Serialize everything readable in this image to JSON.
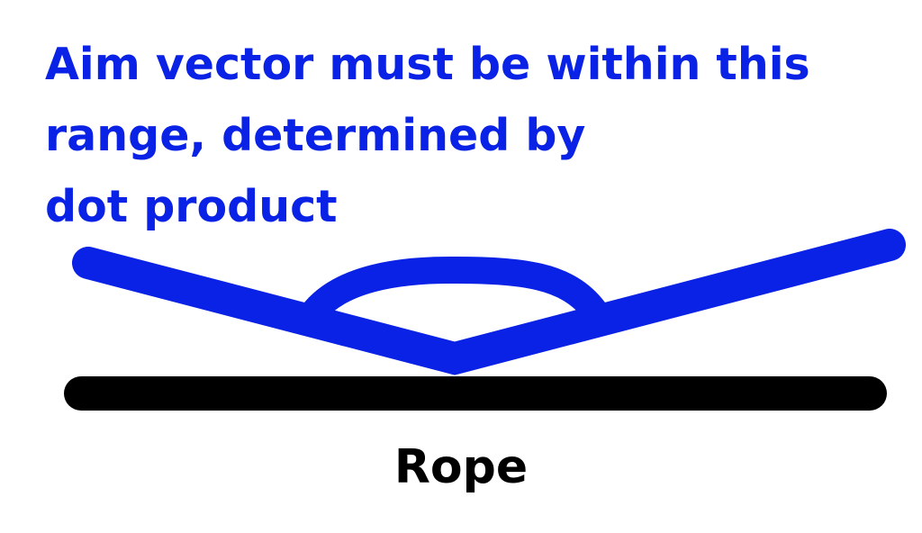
{
  "caption": {
    "lines": [
      "Aim vector must be within this",
      "range, determined by",
      "dot product"
    ]
  },
  "rope": {
    "label": "Rope"
  },
  "colors": {
    "accent": "#0a22e6",
    "rope": "#000000",
    "background": "#ffffff"
  }
}
